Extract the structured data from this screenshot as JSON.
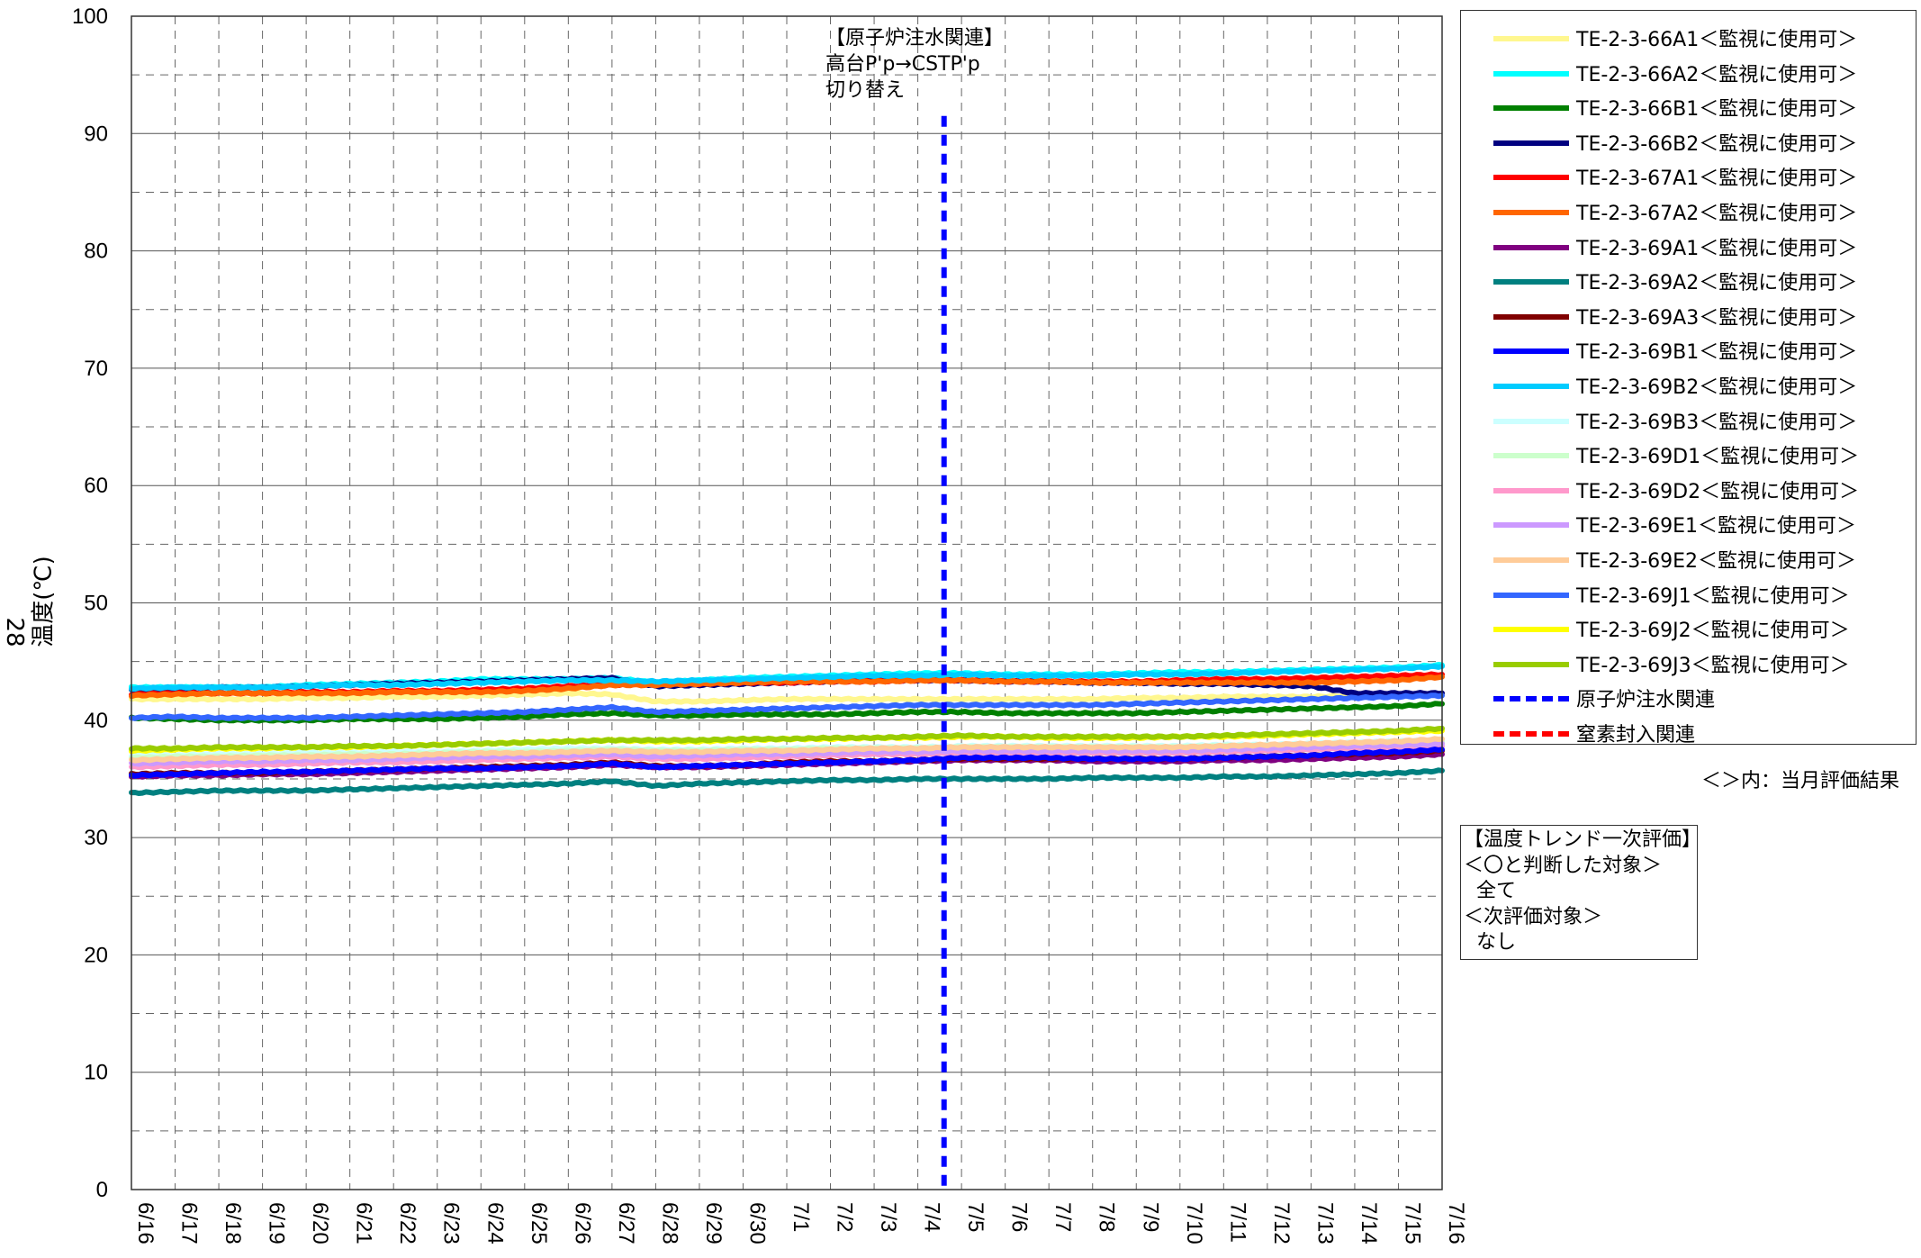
{
  "page_number": "28",
  "annotation": {
    "title": "【原子炉注水関連】",
    "line2": "高台P'p→CSTP'p",
    "line3": "切り替え"
  },
  "legend_note": "＜＞内：当月評価結果",
  "evaluation_box": {
    "title": "【温度トレンド一次評価】",
    "line1": "＜〇と判断した対象＞",
    "line2": "  全て",
    "line3": "＜次評価対象＞",
    "line4": "  なし"
  },
  "chart_data": {
    "type": "line",
    "title": "",
    "xlabel": "",
    "ylabel": "温度(℃)",
    "ylim": [
      0,
      100
    ],
    "y_ticks": [
      "0",
      "10",
      "20",
      "30",
      "40",
      "50",
      "60",
      "70",
      "80",
      "90",
      "100"
    ],
    "x_ticks": [
      "6/16",
      "6/17",
      "6/18",
      "6/19",
      "6/20",
      "6/21",
      "6/22",
      "6/23",
      "6/24",
      "6/25",
      "6/26",
      "6/27",
      "6/28",
      "6/29",
      "6/30",
      "7/1",
      "7/2",
      "7/3",
      "7/4",
      "7/5",
      "7/6",
      "7/7",
      "7/8",
      "7/9",
      "7/10",
      "7/11",
      "7/12",
      "7/13",
      "7/14",
      "7/15",
      "7/16"
    ],
    "grid": true,
    "legend_position": "right",
    "x_days": [
      0,
      1,
      2,
      3,
      4,
      5,
      6,
      7,
      8,
      9,
      10,
      11,
      12,
      13,
      14,
      15,
      16,
      17,
      18,
      19,
      20,
      21,
      22,
      23,
      24,
      25,
      26,
      27,
      28,
      29,
      30
    ],
    "series": [
      {
        "name": "TE-2-3-66A1＜監視に使用可＞",
        "color": "#FFF78F",
        "values": [
          41.8,
          41.8,
          41.8,
          41.8,
          41.9,
          41.9,
          42.0,
          42.0,
          42.1,
          42.2,
          42.3,
          42.2,
          41.6,
          41.6,
          41.7,
          41.8,
          41.8,
          41.8,
          41.8,
          41.8,
          41.8,
          41.8,
          41.8,
          41.9,
          41.9,
          42.0,
          42.0,
          42.0,
          42.1,
          42.1,
          42.2
        ]
      },
      {
        "name": "TE-2-3-66A2＜監視に使用可＞",
        "color": "#00FFFF",
        "values": [
          42.8,
          42.8,
          42.8,
          42.8,
          43.0,
          43.1,
          43.2,
          43.3,
          43.5,
          43.5,
          43.5,
          43.6,
          43.2,
          43.4,
          43.6,
          43.7,
          43.8,
          43.9,
          44.0,
          44.0,
          43.9,
          43.9,
          43.9,
          44.0,
          44.1,
          44.1,
          44.2,
          44.3,
          44.4,
          44.5,
          44.7
        ]
      },
      {
        "name": "TE-2-3-66B1＜監視に使用可＞",
        "color": "#008000",
        "values": [
          40.2,
          40.1,
          40.0,
          40.0,
          40.0,
          40.1,
          40.1,
          40.1,
          40.2,
          40.3,
          40.5,
          40.6,
          40.4,
          40.4,
          40.5,
          40.5,
          40.5,
          40.6,
          40.7,
          40.7,
          40.6,
          40.6,
          40.6,
          40.6,
          40.7,
          40.8,
          40.9,
          41.0,
          41.1,
          41.2,
          41.4
        ]
      },
      {
        "name": "TE-2-3-66B2＜監視に使用可＞",
        "color": "#000080",
        "values": [
          42.6,
          42.7,
          42.8,
          42.8,
          42.9,
          43.0,
          43.1,
          43.2,
          43.3,
          43.4,
          43.5,
          43.6,
          42.9,
          43.0,
          43.1,
          43.2,
          43.3,
          43.4,
          43.4,
          43.4,
          43.3,
          43.3,
          43.2,
          43.2,
          43.1,
          43.1,
          43.0,
          42.9,
          42.3,
          42.3,
          42.3
        ]
      },
      {
        "name": "TE-2-3-67A1＜監視に使用可＞",
        "color": "#FF0000",
        "values": [
          42.2,
          42.3,
          42.3,
          42.3,
          42.4,
          42.4,
          42.5,
          42.5,
          42.6,
          42.7,
          42.9,
          43.0,
          43.1,
          43.1,
          43.2,
          43.2,
          43.3,
          43.3,
          43.4,
          43.4,
          43.3,
          43.3,
          43.3,
          43.3,
          43.4,
          43.5,
          43.5,
          43.6,
          43.7,
          43.8,
          43.9
        ]
      },
      {
        "name": "TE-2-3-67A2＜監視に使用可＞",
        "color": "#FF6600",
        "values": [
          42.1,
          42.2,
          42.3,
          42.3,
          42.3,
          42.3,
          42.4,
          42.4,
          42.4,
          42.5,
          42.7,
          43.0,
          43.0,
          43.1,
          43.2,
          43.3,
          43.3,
          43.3,
          43.4,
          43.4,
          43.3,
          43.3,
          43.2,
          43.2,
          43.2,
          43.2,
          43.2,
          43.2,
          43.3,
          43.4,
          43.7
        ]
      },
      {
        "name": "TE-2-3-69A1＜監視に使用可＞",
        "color": "#800080",
        "values": [
          35.2,
          35.3,
          35.3,
          35.4,
          35.4,
          35.5,
          35.6,
          35.7,
          35.8,
          35.9,
          36.0,
          36.2,
          36.0,
          36.0,
          36.1,
          36.2,
          36.3,
          36.4,
          36.5,
          36.6,
          36.6,
          36.6,
          36.5,
          36.5,
          36.5,
          36.6,
          36.6,
          36.7,
          36.8,
          36.9,
          37.1
        ]
      },
      {
        "name": "TE-2-3-69A2＜監視に使用可＞",
        "color": "#008080",
        "values": [
          33.8,
          33.9,
          34.0,
          34.0,
          34.0,
          34.1,
          34.2,
          34.3,
          34.4,
          34.5,
          34.6,
          34.8,
          34.4,
          34.6,
          34.7,
          34.8,
          34.9,
          34.9,
          35.0,
          35.0,
          35.0,
          35.0,
          35.1,
          35.1,
          35.1,
          35.2,
          35.2,
          35.3,
          35.4,
          35.5,
          35.7
        ]
      },
      {
        "name": "TE-2-3-69A3＜監視に使用可＞",
        "color": "#800000",
        "values": [
          35.4,
          35.5,
          35.5,
          35.5,
          35.6,
          35.7,
          35.8,
          35.9,
          36.0,
          36.1,
          36.2,
          36.4,
          36.1,
          36.1,
          36.2,
          36.4,
          36.5,
          36.5,
          36.6,
          36.7,
          36.7,
          36.7,
          36.7,
          36.7,
          36.7,
          36.8,
          36.9,
          37.0,
          37.1,
          37.2,
          37.4
        ]
      },
      {
        "name": "TE-2-3-69B1＜監視に使用可＞",
        "color": "#0000FF",
        "values": [
          35.3,
          35.4,
          35.5,
          35.6,
          35.6,
          35.7,
          35.8,
          35.9,
          35.9,
          36.0,
          36.1,
          36.3,
          36.0,
          36.1,
          36.2,
          36.3,
          36.4,
          36.5,
          36.6,
          36.8,
          36.8,
          36.8,
          36.7,
          36.7,
          36.7,
          36.8,
          36.9,
          37.0,
          37.2,
          37.3,
          37.5
        ]
      },
      {
        "name": "TE-2-3-69B2＜監視に使用可＞",
        "color": "#00CCFF",
        "values": [
          42.7,
          42.8,
          42.8,
          42.8,
          42.9,
          43.0,
          43.0,
          43.1,
          43.2,
          43.3,
          43.4,
          43.4,
          43.3,
          43.4,
          43.5,
          43.6,
          43.7,
          43.8,
          43.8,
          43.9,
          43.8,
          43.8,
          43.8,
          43.9,
          43.9,
          44.0,
          44.1,
          44.2,
          44.3,
          44.4,
          44.6
        ]
      },
      {
        "name": "TE-2-3-69B3＜監視に使用可＞",
        "color": "#CCFFFF",
        "values": [
          37.0,
          37.0,
          37.1,
          37.1,
          37.2,
          37.2,
          37.3,
          37.3,
          37.4,
          37.5,
          37.6,
          37.6,
          37.5,
          37.5,
          37.6,
          37.6,
          37.7,
          37.7,
          37.7,
          37.8,
          37.8,
          37.8,
          37.8,
          37.8,
          37.8,
          37.9,
          37.9,
          38.0,
          38.1,
          38.2,
          38.3
        ]
      },
      {
        "name": "TE-2-3-69D1＜監視に使用可＞",
        "color": "#CCFFCC",
        "values": [
          36.8,
          36.9,
          36.9,
          37.0,
          37.0,
          37.1,
          37.1,
          37.2,
          37.3,
          37.3,
          37.4,
          37.5,
          37.4,
          37.4,
          37.5,
          37.5,
          37.6,
          37.6,
          37.6,
          37.7,
          37.7,
          37.7,
          37.7,
          37.7,
          37.7,
          37.8,
          37.8,
          37.9,
          38.0,
          38.1,
          38.2
        ]
      },
      {
        "name": "TE-2-3-69D2＜監視に使用可＞",
        "color": "#FF99CC",
        "values": [
          36.0,
          36.1,
          36.2,
          36.2,
          36.3,
          36.4,
          36.4,
          36.5,
          36.6,
          36.7,
          36.8,
          36.9,
          36.7,
          36.7,
          36.8,
          36.9,
          37.0,
          37.1,
          37.1,
          37.2,
          37.2,
          37.2,
          37.2,
          37.2,
          37.2,
          37.3,
          37.4,
          37.5,
          37.6,
          37.7,
          37.8
        ]
      },
      {
        "name": "TE-2-3-69E1＜監視に使用可＞",
        "color": "#CC99FF",
        "values": [
          36.3,
          36.4,
          36.5,
          36.5,
          36.6,
          36.6,
          36.7,
          36.8,
          36.9,
          36.9,
          37.0,
          37.1,
          36.9,
          37.0,
          37.1,
          37.1,
          37.2,
          37.3,
          37.3,
          37.4,
          37.4,
          37.4,
          37.4,
          37.4,
          37.4,
          37.5,
          37.6,
          37.7,
          37.8,
          37.9,
          38.0
        ]
      },
      {
        "name": "TE-2-3-69E2＜監視に使用可＞",
        "color": "#FFCC99",
        "values": [
          36.6,
          36.7,
          36.8,
          36.8,
          36.9,
          36.9,
          37.0,
          37.1,
          37.2,
          37.2,
          37.3,
          37.4,
          37.3,
          37.3,
          37.4,
          37.4,
          37.5,
          37.6,
          37.6,
          37.7,
          37.7,
          37.7,
          37.7,
          37.7,
          37.7,
          37.8,
          37.9,
          38.0,
          38.1,
          38.2,
          38.4
        ]
      },
      {
        "name": "TE-2-3-69J1＜監視に使用可＞",
        "color": "#3366FF",
        "values": [
          40.2,
          40.3,
          40.2,
          40.2,
          40.2,
          40.3,
          40.4,
          40.5,
          40.6,
          40.7,
          40.9,
          41.1,
          40.7,
          40.8,
          40.9,
          41.0,
          41.1,
          41.2,
          41.3,
          41.3,
          41.3,
          41.3,
          41.3,
          41.4,
          41.5,
          41.6,
          41.7,
          41.8,
          41.9,
          42.0,
          42.1
        ]
      },
      {
        "name": "TE-2-3-69J2＜監視に使用可＞",
        "color": "#FFFF00",
        "values": [
          37.4,
          37.5,
          37.6,
          37.6,
          37.7,
          37.7,
          37.8,
          37.9,
          38.0,
          38.1,
          38.2,
          38.3,
          38.2,
          38.2,
          38.3,
          38.4,
          38.4,
          38.5,
          38.5,
          38.6,
          38.6,
          38.5,
          38.5,
          38.5,
          38.6,
          38.6,
          38.7,
          38.8,
          38.9,
          39.0,
          39.1
        ]
      },
      {
        "name": "TE-2-3-69J3＜監視に使用可＞",
        "color": "#99CC00",
        "values": [
          37.6,
          37.6,
          37.7,
          37.7,
          37.7,
          37.8,
          37.8,
          37.9,
          38.0,
          38.1,
          38.2,
          38.3,
          38.3,
          38.3,
          38.4,
          38.4,
          38.5,
          38.5,
          38.6,
          38.7,
          38.6,
          38.6,
          38.6,
          38.6,
          38.6,
          38.7,
          38.8,
          38.9,
          39.0,
          39.1,
          39.3
        ]
      }
    ],
    "event_lines": [
      {
        "name": "原子炉注水関連",
        "color": "#0000FF",
        "style": "dotted",
        "x_day": 18.6
      },
      {
        "name": "窒素封入関連",
        "color": "#FF0000",
        "style": "dotted",
        "x_day": null
      }
    ]
  }
}
